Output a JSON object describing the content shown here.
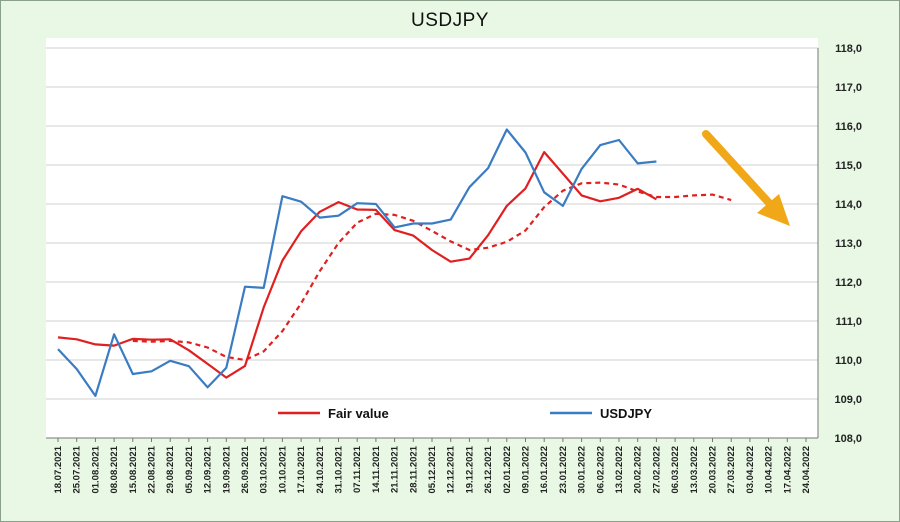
{
  "chart_data": {
    "type": "line",
    "title": "USDJPY",
    "ylim": [
      108.0,
      118.0
    ],
    "y_ticks": [
      "108,0",
      "109,0",
      "110,0",
      "111,0",
      "112,0",
      "113,0",
      "114,0",
      "115,0",
      "116,0",
      "117,0",
      "118,0"
    ],
    "grid": "horizontal",
    "legend_position": "bottom",
    "x": [
      "18.07.2021",
      "25.07.2021",
      "01.08.2021",
      "08.08.2021",
      "15.08.2021",
      "22.08.2021",
      "29.08.2021",
      "05.09.2021",
      "12.09.2021",
      "19.09.2021",
      "26.09.2021",
      "03.10.2021",
      "10.10.2021",
      "17.10.2021",
      "24.10.2021",
      "31.10.2021",
      "07.11.2021",
      "14.11.2021",
      "21.11.2021",
      "28.11.2021",
      "05.12.2021",
      "12.12.2021",
      "19.12.2021",
      "26.12.2021",
      "02.01.2022",
      "09.01.2022",
      "16.01.2022",
      "23.01.2022",
      "30.01.2022",
      "06.02.2022",
      "13.02.2022",
      "20.02.2022",
      "27.02.2022",
      "06.03.2022",
      "13.03.2022",
      "20.03.2022",
      "27.03.2022",
      "03.04.2022",
      "10.04.2022",
      "17.04.2022",
      "24.04.2022"
    ],
    "series": [
      {
        "name": "Fair value",
        "color": "#e02020",
        "style": "solid",
        "values": [
          110.58,
          110.53,
          110.4,
          110.37,
          110.54,
          110.52,
          110.53,
          110.25,
          109.9,
          109.55,
          109.85,
          111.35,
          112.55,
          113.3,
          113.8,
          114.05,
          113.86,
          113.85,
          113.33,
          113.19,
          112.82,
          112.52,
          112.6,
          113.2,
          113.95,
          114.4,
          115.33,
          114.78,
          114.22,
          114.07,
          114.16,
          114.39,
          114.12,
          null,
          null,
          null,
          null,
          null,
          null,
          null,
          null
        ]
      },
      {
        "name": "",
        "color": "#e02020",
        "style": "dashed",
        "values": [
          null,
          null,
          null,
          null,
          110.49,
          110.47,
          110.49,
          110.45,
          110.32,
          110.08,
          110.0,
          110.22,
          110.74,
          111.45,
          112.28,
          113.0,
          113.52,
          113.75,
          113.72,
          113.57,
          113.31,
          113.04,
          112.82,
          112.88,
          113.03,
          113.32,
          113.92,
          114.34,
          114.53,
          114.55,
          114.5,
          114.32,
          114.18,
          114.18,
          114.22,
          114.24,
          114.1,
          null,
          null,
          null,
          null
        ]
      },
      {
        "name": "USDJPY",
        "color": "#3a7cc4",
        "style": "solid",
        "values": [
          110.28,
          109.77,
          109.08,
          110.66,
          109.64,
          109.71,
          109.98,
          109.84,
          109.3,
          109.8,
          111.88,
          111.85,
          114.2,
          114.06,
          113.65,
          113.7,
          114.02,
          114.0,
          113.4,
          113.5,
          113.5,
          113.6,
          114.43,
          114.92,
          115.91,
          115.32,
          114.3,
          113.95,
          114.9,
          115.51,
          115.64,
          115.04,
          115.09,
          null,
          null,
          null,
          null,
          null,
          null,
          null,
          null
        ]
      }
    ],
    "annotation": "orange-down-arrow"
  },
  "legend": {
    "fair_value": "Fair value",
    "usdjpy": "USDJPY"
  },
  "colors": {
    "background": "#e8f8e4",
    "plot": "#ffffff",
    "fair_value": "#e02020",
    "usdjpy": "#3a7cc4",
    "arrow": "#f0a818"
  }
}
